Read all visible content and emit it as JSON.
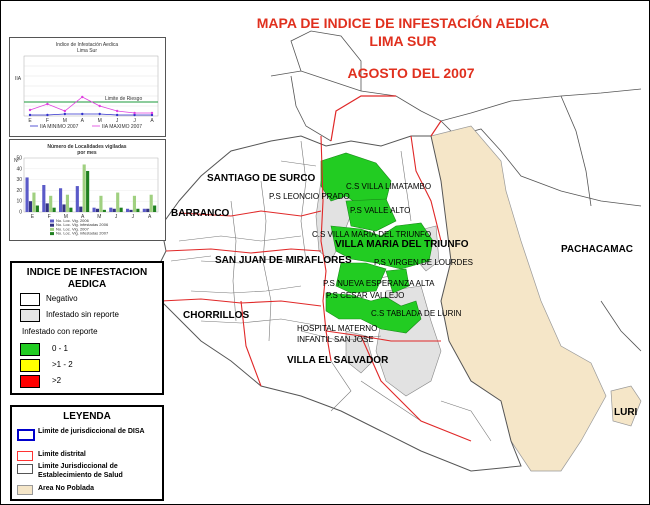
{
  "titles": {
    "line1": "MAPA DE INDICE DE INFESTACIÓN AEDICA",
    "line2": "LIMA SUR",
    "line3": "AGOSTO DEL 2007"
  },
  "chart1": {
    "title_line1": "Indice de Infestación Aedica",
    "title_line2": "Lima Sur",
    "ylabel": "IIA",
    "threshold_label": "Limite de Riesgo",
    "legend_min": "IIA MINIMO 2007",
    "legend_max": "IIA MAXIMO 2007"
  },
  "chart2": {
    "title_line1": "Número de Localidades vigiladas",
    "title_line2": "por mes",
    "ylabel": "Nº",
    "legend": [
      "No. Loc. Vig. 2006",
      "No. Loc. Vig. infestadas 2006",
      "No. Loc. Vig. 2007",
      "No. Loc. Vig. infestadas 2007"
    ]
  },
  "chart_data": [
    {
      "type": "line",
      "title": "Indice de Infestación Aedica Lima Sur",
      "ylabel": "IIA",
      "categories": [
        "E",
        "F",
        "M",
        "A",
        "M",
        "J",
        "J",
        "A"
      ],
      "series": [
        {
          "name": "IIA MINIMO 2007",
          "values": [
            0.1,
            0.1,
            0.2,
            0.2,
            0.2,
            0.1,
            0.1,
            0.1
          ]
        },
        {
          "name": "IIA MAXIMO 2007",
          "values": [
            0.6,
            1.2,
            0.5,
            1.9,
            1.0,
            0.5,
            0.3,
            0.3
          ]
        }
      ],
      "reference_line": {
        "label": "Limite de Riesgo",
        "value": 2
      }
    },
    {
      "type": "bar",
      "title": "Número de Localidades vigiladas por mes",
      "ylabel": "Nº",
      "categories": [
        "E",
        "F",
        "M",
        "A",
        "M",
        "J",
        "J",
        "A"
      ],
      "yticks": [
        0,
        10,
        20,
        30,
        40,
        50
      ],
      "series": [
        {
          "name": "No. Loc. Vig. 2006",
          "values": [
            32,
            25,
            22,
            24,
            4,
            4,
            3,
            3
          ]
        },
        {
          "name": "No. Loc. Vig. infestadas 2006",
          "values": [
            10,
            8,
            7,
            5,
            3,
            3,
            2,
            3
          ]
        },
        {
          "name": "No. Loc. Vig. 2007",
          "values": [
            18,
            15,
            16,
            44,
            15,
            18,
            15,
            16
          ]
        },
        {
          "name": "No. Loc. Vig. infestadas 2007",
          "values": [
            6,
            4,
            4,
            38,
            2,
            4,
            3,
            6
          ]
        }
      ],
      "colors": [
        "#5a5ac8",
        "#333380",
        "#a0d080",
        "#208020"
      ]
    }
  ],
  "legend_index": {
    "title_line1": "INDICE DE INFESTACION",
    "title_line2": "AEDICA",
    "negativo": "Negativo",
    "sin_reporte": "Infestado sin reporte",
    "con_reporte": "Infestado con reporte",
    "range1": "0 - 1",
    "range2": ">1 - 2",
    "range3": ">2",
    "colors": {
      "negativo": "#ffffff",
      "sin_reporte": "#e6e6e6",
      "range1": "#22cc22",
      "range2": "#ffff00",
      "range3": "#ff0000"
    }
  },
  "leyenda": {
    "title": "LEYENDA",
    "disa": "Limite de jurisdiccional de DISA",
    "distrital": "Limite distrital",
    "establecimiento": "Limite Jurisdiccional de Establecimiento de Salud",
    "no_poblada": "Area No Poblada",
    "colors": {
      "disa": "#0000cc",
      "distrital": "#ff3333",
      "establecimiento": "#555555",
      "no_poblada": "#f5e6c8"
    }
  },
  "districts": {
    "surco": "SANTIAGO DE SURCO",
    "barranco": "BARRANCO",
    "sjm": "SAN JUAN DE MIRAFLORES",
    "chorrillos": "CHORRILLOS",
    "vmt": "VILLA MARIA DEL TRIUNFO",
    "ves": "VILLA EL SALVADOR",
    "pachacamac": "PACHACAMAC",
    "lurin": "LURI"
  },
  "facilities": {
    "limatambo": "C.S VILLA  LIMATAMBO",
    "leoncio": "P.S LEONCIO PRADO",
    "valle_alto": "P.S VALLE ALTO",
    "vmt_cs": "C.S VILLA MARIA DEL TRIUNFO",
    "virgen": "P.S VIRGEN DE LOURDES",
    "nueva": "P.S NUEVA ESPERANZA ALTA",
    "cesar": "P.S CESAR VALLEJO",
    "tablada": "C.S  TABLADA DE LURIN",
    "hospital_1": "HOSPITAL MATERNO",
    "hospital_2": "INFANTIL SAN JOSE"
  }
}
